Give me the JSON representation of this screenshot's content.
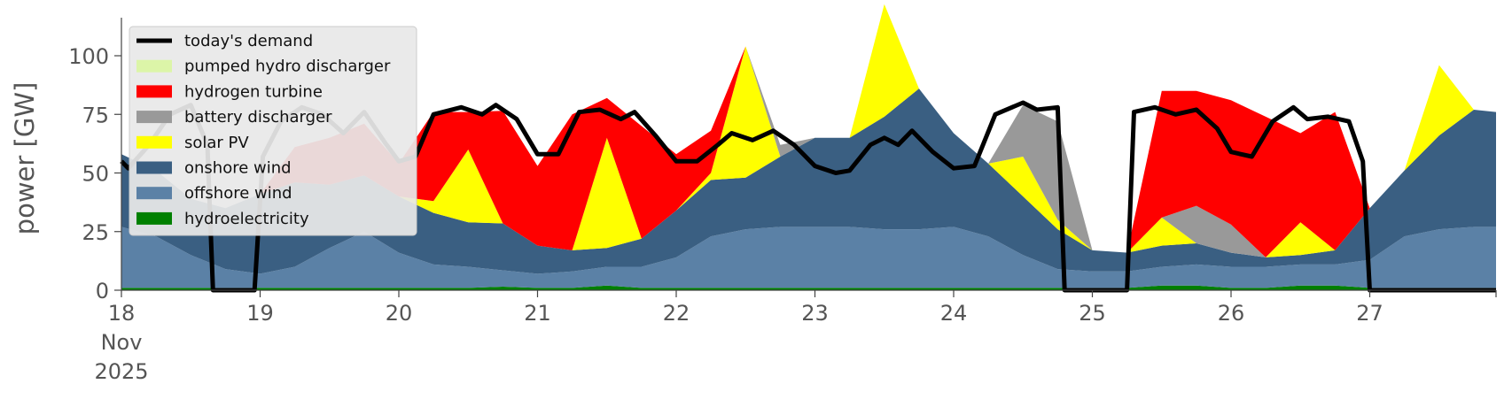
{
  "chart_data": {
    "type": "area",
    "ylabel": "power [GW]",
    "ylim": [
      0,
      120
    ],
    "yticks": [
      0,
      25,
      50,
      75,
      100
    ],
    "x_unit": "day of Nov 2025",
    "xlim": [
      18,
      28
    ],
    "xticks": [
      {
        "x": 18,
        "lines": [
          "18",
          "Nov",
          "2025"
        ]
      },
      {
        "x": 19,
        "lines": [
          "19"
        ]
      },
      {
        "x": 20,
        "lines": [
          "20"
        ]
      },
      {
        "x": 21,
        "lines": [
          "21"
        ]
      },
      {
        "x": 22,
        "lines": [
          "22"
        ]
      },
      {
        "x": 23,
        "lines": [
          "23"
        ]
      },
      {
        "x": 24,
        "lines": [
          "24"
        ]
      },
      {
        "x": 25,
        "lines": [
          "25"
        ]
      },
      {
        "x": 26,
        "lines": [
          "26"
        ]
      },
      {
        "x": 27,
        "lines": [
          "27"
        ]
      }
    ],
    "x": [
      18.0,
      18.25,
      18.5,
      18.75,
      19.0,
      19.25,
      19.5,
      19.75,
      20.0,
      20.25,
      20.5,
      20.75,
      21.0,
      21.25,
      21.5,
      21.75,
      22.0,
      22.25,
      22.5,
      22.75,
      23.0,
      23.25,
      23.5,
      23.75,
      24.0,
      24.25,
      24.5,
      24.75,
      25.0,
      25.25,
      25.5,
      25.75,
      26.0,
      26.25,
      26.5,
      26.75,
      27.0,
      27.25,
      27.5,
      27.75,
      27.95
    ],
    "stack_order": [
      "hydroelectricity",
      "offshore wind",
      "onshore wind",
      "solar PV",
      "battery discharger",
      "hydrogen turbine",
      "pumped hydro discharger"
    ],
    "series": [
      {
        "name": "hydroelectricity",
        "color": "#008000",
        "values": [
          1,
          1,
          1,
          1,
          1,
          1,
          1,
          1,
          1,
          1,
          1,
          1.5,
          1,
          1,
          2,
          1,
          1,
          1,
          1,
          1,
          1,
          1,
          1,
          1,
          1,
          1,
          1,
          1,
          1,
          1,
          2,
          2,
          1,
          1,
          2,
          2,
          1,
          1,
          1,
          1,
          1
        ]
      },
      {
        "name": "offshore wind",
        "color": "#5b81a6",
        "values": [
          26,
          22,
          14,
          8,
          6,
          9,
          17,
          24,
          15,
          10,
          9,
          7,
          6,
          7,
          8,
          9,
          13,
          22,
          25,
          26,
          26,
          26,
          25,
          25,
          26,
          22,
          14,
          8,
          7,
          7,
          8,
          9,
          9,
          9,
          9,
          9,
          12,
          22,
          25,
          26,
          26
        ]
      },
      {
        "name": "onshore wind",
        "color": "#3a5f82",
        "values": [
          31,
          28,
          24,
          26,
          34,
          36,
          27,
          24,
          24,
          22,
          19,
          20,
          12,
          9,
          8,
          12,
          20,
          24,
          22,
          30,
          38,
          38,
          48,
          60,
          40,
          31,
          25,
          17,
          9,
          8,
          9,
          9,
          6,
          4,
          4,
          6,
          22,
          28,
          40,
          50,
          49
        ]
      },
      {
        "name": "solar PV",
        "color": "#ffff00",
        "values": [
          0,
          0,
          0,
          0,
          0,
          0,
          0,
          0,
          0,
          5,
          31,
          0,
          0,
          0,
          47,
          0,
          0,
          3,
          56,
          0,
          0,
          0,
          48,
          0,
          0,
          0,
          17,
          4,
          0,
          0,
          12,
          0,
          0,
          0,
          14,
          0,
          0,
          0,
          30,
          0,
          0
        ]
      },
      {
        "name": "battery discharger",
        "color": "#999999",
        "values": [
          0,
          0,
          0,
          0,
          0,
          0,
          0,
          0,
          0,
          0,
          0,
          0,
          0,
          0,
          0,
          0,
          0,
          0,
          0,
          5,
          0,
          0,
          0,
          0,
          0,
          0,
          22,
          42,
          0,
          0,
          0,
          16,
          12,
          0,
          0,
          0,
          0,
          0,
          0,
          0,
          0
        ]
      },
      {
        "name": "hydrogen turbine",
        "color": "#ff0000",
        "values": [
          0,
          0,
          0,
          0,
          0,
          15,
          20,
          22,
          14,
          38,
          16,
          48,
          34,
          58,
          17,
          48,
          24,
          18,
          0,
          0,
          0,
          0,
          0,
          0,
          0,
          0,
          0,
          0,
          0,
          0,
          54,
          49,
          53,
          60,
          38,
          59,
          0,
          0,
          0,
          0,
          0
        ]
      },
      {
        "name": "pumped hydro discharger",
        "color": "#dcf5a8",
        "values": [
          0,
          0,
          0,
          0,
          0,
          0,
          0,
          0,
          0,
          0,
          0,
          0,
          0,
          0,
          0,
          0,
          0,
          0,
          0,
          0,
          0,
          0,
          0,
          0,
          0,
          0,
          0,
          0,
          0,
          0,
          0,
          0,
          0,
          0,
          0,
          0,
          0,
          0,
          0,
          0,
          0
        ]
      }
    ],
    "demand": {
      "name": "today's demand",
      "color": "#000000",
      "points": [
        [
          17.9,
          55
        ],
        [
          18.05,
          52
        ],
        [
          18.2,
          62
        ],
        [
          18.35,
          75
        ],
        [
          18.5,
          79
        ],
        [
          18.62,
          62
        ],
        [
          18.66,
          0
        ],
        [
          18.96,
          0
        ],
        [
          19.02,
          57
        ],
        [
          19.15,
          72
        ],
        [
          19.3,
          78
        ],
        [
          19.45,
          75
        ],
        [
          19.6,
          67
        ],
        [
          19.75,
          76
        ],
        [
          19.9,
          63
        ],
        [
          20.0,
          55
        ],
        [
          20.12,
          57
        ],
        [
          20.25,
          75
        ],
        [
          20.45,
          78
        ],
        [
          20.6,
          75
        ],
        [
          20.7,
          79
        ],
        [
          20.85,
          73
        ],
        [
          21.0,
          58
        ],
        [
          21.15,
          58
        ],
        [
          21.3,
          76
        ],
        [
          21.45,
          77
        ],
        [
          21.6,
          73
        ],
        [
          21.7,
          76
        ],
        [
          21.85,
          66
        ],
        [
          22.0,
          55
        ],
        [
          22.15,
          55
        ],
        [
          22.3,
          62
        ],
        [
          22.4,
          67
        ],
        [
          22.55,
          64
        ],
        [
          22.7,
          68
        ],
        [
          22.85,
          62
        ],
        [
          23.0,
          53
        ],
        [
          23.15,
          50
        ],
        [
          23.25,
          51
        ],
        [
          23.4,
          62
        ],
        [
          23.5,
          65
        ],
        [
          23.6,
          62
        ],
        [
          23.7,
          68
        ],
        [
          23.85,
          59
        ],
        [
          24.0,
          52
        ],
        [
          24.15,
          53
        ],
        [
          24.3,
          75
        ],
        [
          24.5,
          80
        ],
        [
          24.6,
          77
        ],
        [
          24.75,
          78
        ],
        [
          24.8,
          0
        ],
        [
          25.25,
          0
        ],
        [
          25.3,
          76
        ],
        [
          25.45,
          78
        ],
        [
          25.6,
          75
        ],
        [
          25.75,
          77
        ],
        [
          25.9,
          69
        ],
        [
          26.0,
          59
        ],
        [
          26.15,
          57
        ],
        [
          26.3,
          72
        ],
        [
          26.45,
          78
        ],
        [
          26.55,
          73
        ],
        [
          26.7,
          74
        ],
        [
          26.85,
          72
        ],
        [
          26.95,
          55
        ],
        [
          27.0,
          0
        ],
        [
          27.95,
          0
        ]
      ]
    },
    "legend": {
      "placement": "upper-left",
      "entries": [
        {
          "label": "today's demand",
          "color": "#000000",
          "kind": "line"
        },
        {
          "label": "pumped hydro discharger",
          "color": "#dcf5a8",
          "kind": "patch"
        },
        {
          "label": "hydrogen turbine",
          "color": "#ff0000",
          "kind": "patch"
        },
        {
          "label": "battery discharger",
          "color": "#999999",
          "kind": "patch"
        },
        {
          "label": "solar PV",
          "color": "#ffff00",
          "kind": "patch"
        },
        {
          "label": "onshore wind",
          "color": "#3a5f82",
          "kind": "patch"
        },
        {
          "label": "offshore wind",
          "color": "#5b81a6",
          "kind": "patch"
        },
        {
          "label": "hydroelectricity",
          "color": "#008000",
          "kind": "patch"
        }
      ]
    },
    "grid": false
  }
}
